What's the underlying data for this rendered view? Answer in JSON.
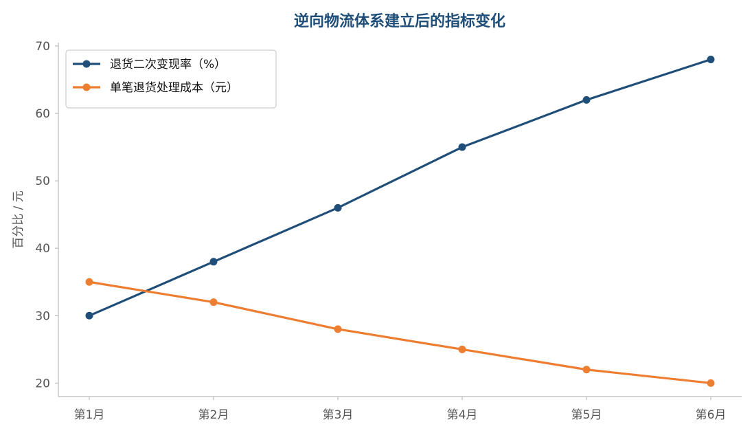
{
  "chart_data": {
    "type": "line",
    "title": "逆向物流体系建立后的指标变化",
    "xlabel": "",
    "ylabel": "百分比 / 元",
    "categories": [
      "第1月",
      "第2月",
      "第3月",
      "第4月",
      "第5月",
      "第6月"
    ],
    "ylim": [
      18,
      70.5
    ],
    "yticks": [
      20,
      30,
      40,
      50,
      60,
      70
    ],
    "grid": false,
    "legend_position": "top-left",
    "series": [
      {
        "name": "退货二次变现率（%）",
        "color": "#1f4e79",
        "values": [
          30,
          38,
          46,
          55,
          62,
          68
        ]
      },
      {
        "name": "单笔退货处理成本（元）",
        "color": "#ed7d31",
        "values": [
          35,
          32,
          28,
          25,
          22,
          20
        ]
      }
    ]
  }
}
